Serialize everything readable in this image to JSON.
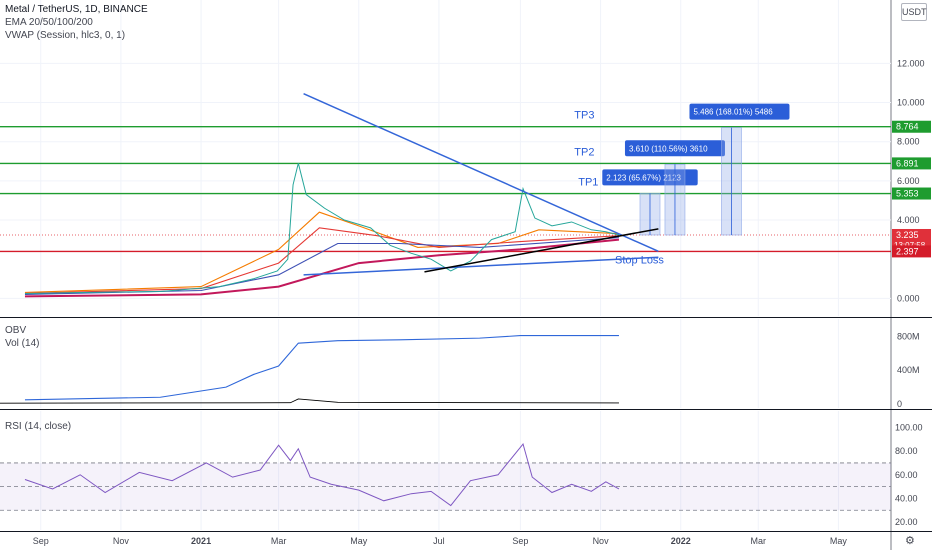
{
  "header": {
    "symbol_line": "Metal / TetherUS, 1D, BINANCE",
    "ema_line": "EMA 20/50/100/200",
    "vwap_line": "VWAP (Session, hlc3, 0, 1)",
    "currency_button": "USDT"
  },
  "panes": {
    "obv_title": "OBV",
    "vol_title": "Vol (14)",
    "rsi_title": "RSI (14, close)"
  },
  "colors": {
    "background": "#ffffff",
    "grid": "#f0f3fa",
    "tp_line": "#1e9c2f",
    "stop_line": "#d41c2a",
    "trend_line_blue": "#3466d8",
    "trend_line_black": "#000000",
    "price_red": "#e0303a",
    "target_box": "#8fa8e8",
    "label_blue": "#2b5ed8",
    "rsi_line": "#7e57c2",
    "obv_line": "#2f67d9"
  },
  "chart_data": {
    "type": "line",
    "title": "Metal / TetherUS, 1D, BINANCE",
    "x_tick_labels": [
      "Sep",
      "Nov",
      "2021",
      "Mar",
      "May",
      "Jul",
      "Sep",
      "Nov",
      "2022",
      "Mar",
      "May"
    ],
    "price_axis": {
      "ticks": [
        "12.000",
        "10.000",
        "8.000",
        "6.000",
        "4.000",
        "0.000"
      ],
      "ylim": [
        -0.8,
        13.5
      ],
      "badges": [
        {
          "value": 8.764,
          "label": "8.764",
          "color": "#1e9c2f"
        },
        {
          "value": 6.891,
          "label": "6.891",
          "color": "#1e9c2f"
        },
        {
          "value": 5.353,
          "label": "5.353",
          "color": "#1e9c2f"
        },
        {
          "value": 3.235,
          "label": "3.235",
          "sub": "13:07:58",
          "color": "#e0303a"
        },
        {
          "value": 2.397,
          "label": "2.397",
          "color": "#d41c2a"
        }
      ]
    },
    "levels": [
      {
        "name": "TP3",
        "value": 8.764
      },
      {
        "name": "TP2",
        "value": 6.891
      },
      {
        "name": "TP1",
        "value": 5.353
      },
      {
        "name": "Stop Loss",
        "value": 2.397
      }
    ],
    "targets": [
      {
        "label": "2.123 (65.67%) 2123",
        "from": 3.235,
        "to": 5.358,
        "x": "2021-12-01"
      },
      {
        "label": "3.610 (110.56%) 3610",
        "from": 3.235,
        "to": 6.845,
        "x": "2021-12-20"
      },
      {
        "label": "5.486 (168.01%) 5486",
        "from": 3.235,
        "to": 8.721,
        "x": "2022-02-01"
      }
    ],
    "close_series": {
      "name": "Metal / TetherUS",
      "x": [
        "2020-08-20",
        "2020-10-01",
        "2020-12-01",
        "2021-01-15",
        "2021-02-10",
        "2021-02-28",
        "2021-03-08",
        "2021-03-12",
        "2021-03-16",
        "2021-03-22",
        "2021-04-05",
        "2021-04-20",
        "2021-05-10",
        "2021-05-25",
        "2021-06-10",
        "2021-06-25",
        "2021-07-10",
        "2021-07-25",
        "2021-08-10",
        "2021-08-28",
        "2021-09-03",
        "2021-09-12",
        "2021-09-25",
        "2021-10-10",
        "2021-10-25",
        "2021-11-05",
        "2021-11-15"
      ],
      "y": [
        0.25,
        0.3,
        0.35,
        0.6,
        1.0,
        1.4,
        2.0,
        5.8,
        6.9,
        5.3,
        4.6,
        4.0,
        3.6,
        2.7,
        2.3,
        2.0,
        1.4,
        1.9,
        3.0,
        3.4,
        5.6,
        4.1,
        3.7,
        3.9,
        3.5,
        3.4,
        3.235
      ]
    },
    "ema_series": [
      {
        "x": [
          "2020-08-20",
          "2021-01-01",
          "2021-03-01",
          "2021-04-01",
          "2021-05-01",
          "2021-06-15",
          "2021-08-15",
          "2021-09-15",
          "2021-11-15"
        ],
        "y": [
          0.3,
          0.6,
          2.5,
          4.4,
          3.7,
          2.6,
          2.8,
          3.5,
          3.3
        ]
      },
      {
        "x": [
          "2020-08-20",
          "2021-01-01",
          "2021-03-01",
          "2021-04-01",
          "2021-05-15",
          "2021-07-01",
          "2021-09-01",
          "2021-11-15"
        ],
        "y": [
          0.25,
          0.5,
          1.8,
          3.6,
          3.2,
          2.6,
          2.9,
          3.2
        ]
      },
      {
        "x": [
          "2020-08-20",
          "2021-01-01",
          "2021-03-01",
          "2021-04-15",
          "2021-06-01",
          "2021-08-01",
          "2021-11-15"
        ],
        "y": [
          0.2,
          0.4,
          1.2,
          2.8,
          2.8,
          2.6,
          3.1
        ]
      },
      {
        "x": [
          "2020-08-20",
          "2021-01-01",
          "2021-03-01",
          "2021-05-01",
          "2021-07-01",
          "2021-09-01",
          "2021-11-15"
        ],
        "y": [
          0.1,
          0.2,
          0.6,
          1.8,
          2.2,
          2.5,
          3.0
        ]
      }
    ],
    "trend_lines": [
      {
        "name": "upper",
        "x": [
          "2021-03-20",
          "2021-12-15"
        ],
        "y": [
          10.45,
          2.4
        ]
      },
      {
        "name": "lower",
        "x": [
          "2021-03-20",
          "2021-12-15"
        ],
        "y": [
          1.2,
          2.1
        ]
      },
      {
        "name": "support",
        "x": [
          "2021-06-20",
          "2021-12-15"
        ],
        "y": [
          1.35,
          3.55
        ]
      }
    ],
    "obv_axis": {
      "ticks": [
        "800M",
        "400M",
        "0"
      ]
    },
    "obv_series": {
      "x": [
        "2020-08-20",
        "2020-12-01",
        "2021-01-20",
        "2021-02-10",
        "2021-03-01",
        "2021-03-16",
        "2021-04-15",
        "2021-06-01",
        "2021-08-01",
        "2021-09-01",
        "2021-11-15"
      ],
      "y": [
        50,
        80,
        200,
        350,
        450,
        720,
        750,
        760,
        780,
        810,
        810
      ]
    },
    "rsi_axis": {
      "ticks": [
        "100.00",
        "80.00",
        "60.00",
        "40.00",
        "20.00"
      ],
      "ylim": [
        15,
        108
      ],
      "band": [
        30,
        70
      ]
    },
    "rsi_series": {
      "x": [
        "2020-08-20",
        "2020-09-10",
        "2020-10-01",
        "2020-10-20",
        "2020-11-15",
        "2020-12-10",
        "2021-01-05",
        "2021-01-25",
        "2021-02-15",
        "2021-03-01",
        "2021-03-10",
        "2021-03-16",
        "2021-03-25",
        "2021-04-10",
        "2021-05-01",
        "2021-05-20",
        "2021-06-10",
        "2021-06-25",
        "2021-07-10",
        "2021-07-25",
        "2021-08-15",
        "2021-09-03",
        "2021-09-10",
        "2021-09-25",
        "2021-10-10",
        "2021-10-25",
        "2021-11-05",
        "2021-11-15"
      ],
      "y": [
        56,
        48,
        60,
        45,
        62,
        55,
        70,
        58,
        64,
        85,
        72,
        82,
        58,
        52,
        47,
        38,
        44,
        46,
        34,
        55,
        60,
        86,
        58,
        45,
        52,
        46,
        54,
        48
      ]
    }
  }
}
